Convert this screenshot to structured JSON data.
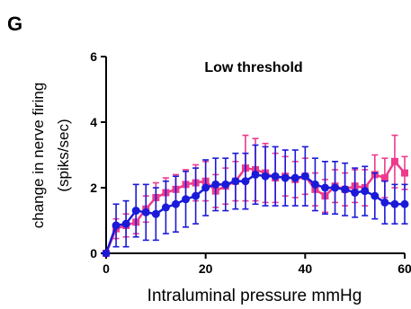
{
  "panel_label": "G",
  "chart_data": {
    "type": "line",
    "title": "Low threshold",
    "xlabel": "Intraluminal pressure mmHg",
    "ylabel_lines": [
      "change in nerve firing",
      "(spiks/sec)"
    ],
    "xlim": [
      0,
      60
    ],
    "ylim": [
      0,
      6
    ],
    "x_ticks": [
      0,
      20,
      40,
      60
    ],
    "y_ticks": [
      0,
      2,
      4,
      6
    ],
    "grid": false,
    "x": [
      0,
      2,
      4,
      6,
      8,
      10,
      12,
      14,
      16,
      18,
      20,
      22,
      24,
      26,
      28,
      30,
      32,
      34,
      36,
      38,
      40,
      42,
      44,
      46,
      48,
      50,
      52,
      54,
      56,
      58,
      60
    ],
    "series": [
      {
        "color": "#ee3a8c",
        "marker": "square",
        "values": [
          0.0,
          0.75,
          0.85,
          0.95,
          1.35,
          1.7,
          1.85,
          1.95,
          2.1,
          2.15,
          2.2,
          1.9,
          2.05,
          2.2,
          2.6,
          2.55,
          2.45,
          2.3,
          2.35,
          2.25,
          2.35,
          1.95,
          1.75,
          2.05,
          1.95,
          2.05,
          2.0,
          2.4,
          2.3,
          2.8,
          2.45
        ],
        "errors": [
          0.0,
          0.3,
          0.35,
          0.35,
          0.4,
          0.45,
          0.45,
          0.45,
          0.45,
          0.55,
          0.6,
          0.5,
          0.55,
          0.6,
          1.0,
          0.95,
          0.9,
          0.75,
          0.6,
          0.55,
          0.55,
          0.5,
          0.5,
          0.5,
          0.5,
          0.5,
          0.55,
          0.6,
          0.6,
          0.8,
          0.5
        ]
      },
      {
        "color": "#1a1ad8",
        "marker": "circle",
        "values": [
          0.0,
          0.85,
          0.9,
          1.3,
          1.25,
          1.2,
          1.4,
          1.5,
          1.65,
          1.75,
          2.0,
          2.1,
          2.1,
          2.2,
          2.2,
          2.4,
          2.35,
          2.35,
          2.3,
          2.3,
          2.35,
          2.1,
          2.0,
          2.0,
          1.95,
          1.85,
          1.9,
          1.75,
          1.55,
          1.5,
          1.5
        ],
        "errors": [
          0.0,
          0.65,
          0.7,
          0.8,
          0.85,
          0.8,
          0.8,
          0.85,
          0.85,
          0.85,
          0.85,
          0.8,
          0.8,
          0.85,
          0.85,
          0.9,
          0.9,
          0.9,
          0.85,
          0.85,
          0.9,
          0.8,
          0.8,
          0.8,
          0.8,
          0.75,
          0.75,
          0.7,
          0.65,
          0.6,
          0.6
        ]
      }
    ]
  }
}
